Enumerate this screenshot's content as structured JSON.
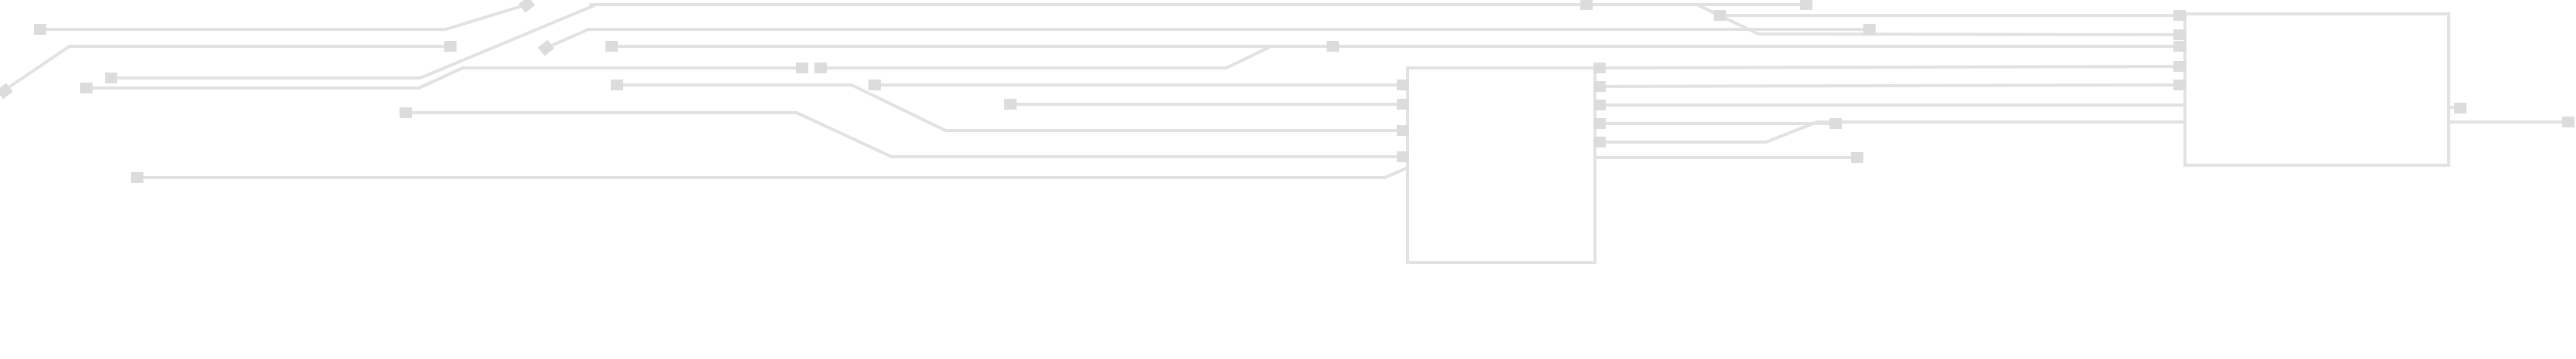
{
  "diagram": {
    "kind": "circuit-trace-illustration",
    "colors": {
      "background": "#ffffff",
      "trace": "#e2e2e2",
      "pad": "#dcdcdc",
      "chip_border": "#e2e2e2"
    },
    "chips": [
      "chip-right",
      "chip-center"
    ],
    "trace_count": 24,
    "text_labels": []
  }
}
